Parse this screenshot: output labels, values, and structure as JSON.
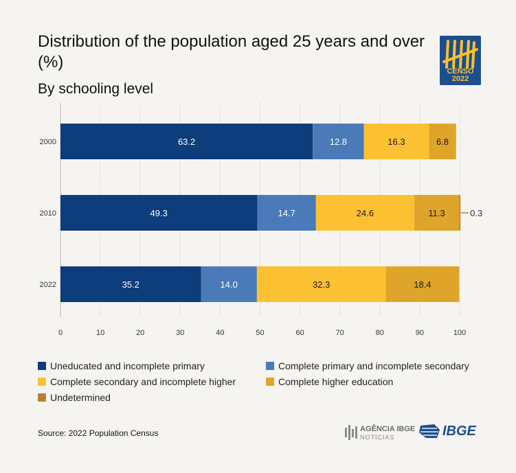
{
  "header": {
    "title": "Distribution of the population aged 25 years and over (%)",
    "subtitle": "By schooling level"
  },
  "logo": {
    "label": "CENSO 2022",
    "icon": "tally-marks-icon",
    "background_color": "#1d4e8f",
    "accent_color": "#f7c12f"
  },
  "chart_data": {
    "type": "bar",
    "orientation": "horizontal",
    "stacked": true,
    "title": "Distribution of the population aged 25 years and over (%)",
    "subtitle": "By schooling level",
    "categories": [
      "2000",
      "2010",
      "2022"
    ],
    "xlim": [
      0,
      100
    ],
    "xticks": [
      0,
      10,
      20,
      30,
      40,
      50,
      60,
      70,
      80,
      90,
      100
    ],
    "grid": true,
    "legend_position": "bottom",
    "series": [
      {
        "name": "Uneducated and incomplete primary",
        "color": "#0d3d7a",
        "values": [
          63.2,
          49.3,
          35.2
        ],
        "labels": [
          "63.2",
          "49.3",
          "35.2"
        ]
      },
      {
        "name": "Complete primary and incomplete secondary",
        "color": "#4b7ab8",
        "values": [
          12.8,
          14.7,
          14.0
        ],
        "labels": [
          "12.8",
          "14.7",
          "14.0"
        ]
      },
      {
        "name": "Complete secondary and incomplete higher",
        "color": "#fcc132",
        "values": [
          16.3,
          24.6,
          32.3
        ],
        "labels": [
          "16.3",
          "24.6",
          "32.3"
        ]
      },
      {
        "name": "Complete higher education",
        "color": "#dfa42a",
        "values": [
          6.8,
          11.3,
          18.4
        ],
        "labels": [
          "6.8",
          "11.3",
          "18.4"
        ]
      },
      {
        "name": "Undetermined",
        "color": "#b5832e",
        "values": [
          0,
          0.3,
          0
        ],
        "labels": [
          "",
          "0.3",
          ""
        ]
      }
    ]
  },
  "source": "Source: 2022 Population Census",
  "footer": {
    "agencia_top": "AGÊNCIA IBGE",
    "agencia_bottom": "NOTÍCIAS",
    "ibge": "IBGE"
  }
}
